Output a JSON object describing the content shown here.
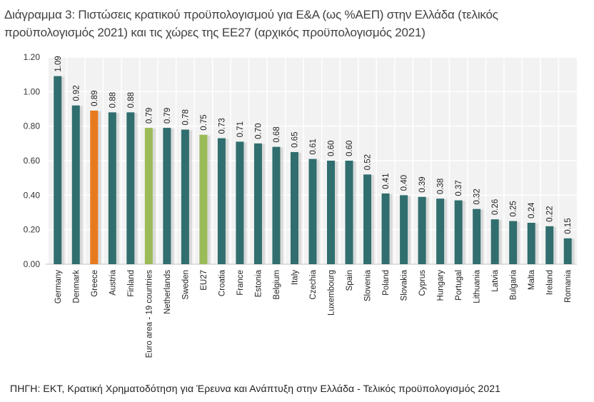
{
  "chart_data": {
    "type": "bar",
    "title_line1": "Διάγραμμα 3: Πιστώσεις κρατικού προϋπολογισμού για Ε&Α (ως %ΑΕΠ) στην Ελλάδα (τελικός",
    "title_line2": "προϋπολογισμός 2021) και τις χώρες της ΕΕ27 (αρχικός προϋπολογισμός 2021)",
    "source": "ΠΗΓΗ: ΕΚΤ, Κρατική Χρηματοδότηση για Έρευνα και Ανάπτυξη στην Ελλάδα - Τελικός προϋπολογισμός 2021",
    "xlabel": "",
    "ylabel": "",
    "ylim": [
      0,
      1.2
    ],
    "yticks": [
      "0.00",
      "0.20",
      "0.40",
      "0.60",
      "0.80",
      "1.00",
      "1.20"
    ],
    "grid": true,
    "categories": [
      "Germany",
      "Denmark",
      "Greece",
      "Austria",
      "Finland",
      "Euro area - 19 countries",
      "Netherlands",
      "Sweden",
      "EU27",
      "Croatia",
      "France",
      "Estonia",
      "Belgium",
      "Italy",
      "Czechia",
      "Luxembourg",
      "Spain",
      "Slovenia",
      "Poland",
      "Slovakia",
      "Cyprus",
      "Hungary",
      "Portugal",
      "Lithuania",
      "Latvia",
      "Bulgaria",
      "Malta",
      "Ireland",
      "Romania"
    ],
    "values": [
      1.09,
      0.92,
      0.89,
      0.88,
      0.88,
      0.79,
      0.79,
      0.78,
      0.75,
      0.73,
      0.71,
      0.7,
      0.68,
      0.65,
      0.61,
      0.6,
      0.6,
      0.52,
      0.41,
      0.4,
      0.39,
      0.38,
      0.37,
      0.32,
      0.26,
      0.25,
      0.24,
      0.22,
      0.15
    ],
    "value_labels": [
      "1.09",
      "0.92",
      "0.89",
      "0.88",
      "0.88",
      "0.79",
      "0.79",
      "0.78",
      "0.75",
      "0.73",
      "0.71",
      "0.70",
      "0.68",
      "0.65",
      "0.61",
      "0.60",
      "0.60",
      "0.52",
      "0.41",
      "0.40",
      "0.39",
      "0.38",
      "0.37",
      "0.32",
      "0.26",
      "0.25",
      "0.24",
      "0.22",
      "0.15"
    ],
    "colors": {
      "default": "#316e6f",
      "Greece": "#e87a1e",
      "Euro area - 19 countries": "#9bbb59",
      "EU27": "#9bbb59"
    },
    "plot_background": "#f2f2f2"
  }
}
